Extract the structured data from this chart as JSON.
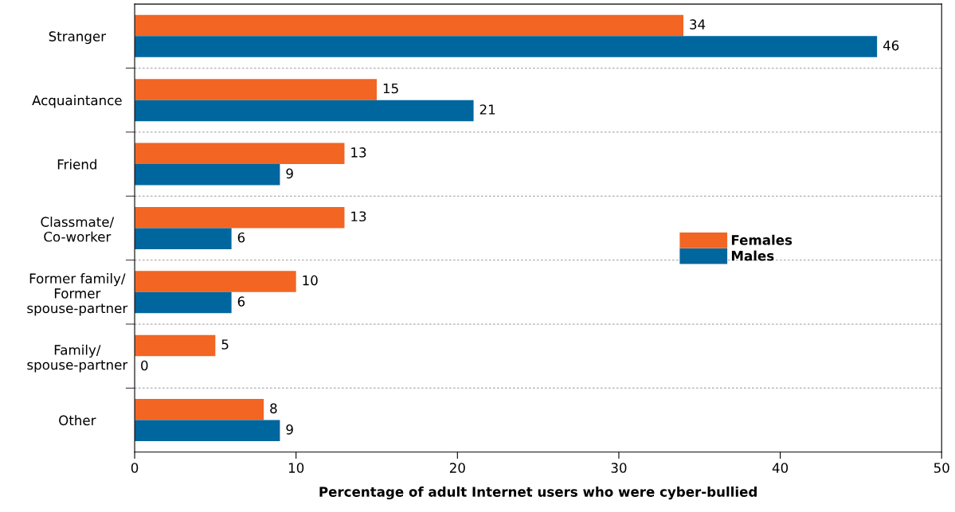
{
  "chart_data": {
    "type": "bar",
    "orientation": "horizontal",
    "xlabel": "Percentage of adult Internet users who were cyber-bullied",
    "categories": [
      "Stranger",
      "Acquaintance",
      "Friend",
      "Classmate/\nCo-worker",
      "Former family/\nFormer\nspouse-partner",
      "Family/\nspouse-partner",
      "Other"
    ],
    "series": [
      {
        "name": "Females",
        "color": "#f26522",
        "values": [
          34,
          15,
          13,
          13,
          10,
          5,
          8
        ]
      },
      {
        "name": "Males",
        "color": "#00669e",
        "values": [
          46,
          21,
          9,
          6,
          6,
          0,
          9
        ]
      }
    ],
    "xlim": [
      0,
      50
    ],
    "xticks": [
      0,
      10,
      20,
      30,
      40,
      50
    ],
    "data_labels": true,
    "grid": "y",
    "legend": "right"
  }
}
